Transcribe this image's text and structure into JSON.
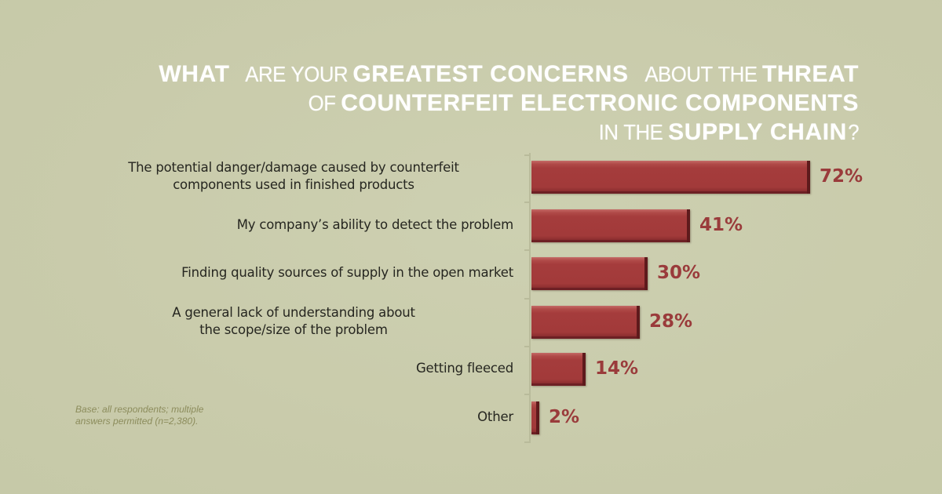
{
  "title": {
    "line1": [
      {
        "text": "WHAT",
        "bold": true
      },
      {
        "text": " ARE YOUR ",
        "bold": false
      },
      {
        "text": "GREATEST CONCERNS",
        "bold": true
      },
      {
        "text": " ABOUT THE ",
        "bold": false
      },
      {
        "text": "THREAT",
        "bold": true
      }
    ],
    "line2": [
      {
        "text": "OF ",
        "bold": false
      },
      {
        "text": "COUNTERFEIT ELECTRONIC COMPONENTS",
        "bold": true
      }
    ],
    "line3": [
      {
        "text": "IN THE ",
        "bold": false
      },
      {
        "text": "SUPPLY CHAIN",
        "bold": true
      },
      {
        "text": "?",
        "bold": false
      }
    ]
  },
  "note": {
    "line1": "Base:  all respondents; multiple",
    "line2": "answers permitted (n=2,380)."
  },
  "colors": {
    "background": "#c9ccac",
    "bar": "#a23a3a",
    "value_label": "#9a3b3b",
    "title": "#ffffff"
  },
  "chart_data": {
    "type": "bar",
    "orientation": "horizontal",
    "title": "What are your greatest concerns about the threat of counterfeit electronic components in the supply chain?",
    "categories": [
      "The potential danger/damage caused by counterfeit components used in finished products",
      "My company's ability to detect the problem",
      "Finding quality sources of supply in the open market",
      "A general lack of understanding about the scope/size of the problem",
      "Getting fleeced",
      "Other"
    ],
    "category_lines": [
      [
        "The potential danger/damage caused by counterfeit",
        "components used in finished products"
      ],
      [
        "My company’s ability to detect the problem"
      ],
      [
        "Finding quality sources of supply in the open market"
      ],
      [
        "A general lack of understanding about",
        "the scope/size of the problem"
      ],
      [
        "Getting fleeced"
      ],
      [
        "Other"
      ]
    ],
    "values": [
      72,
      41,
      30,
      28,
      14,
      2
    ],
    "value_labels": [
      "72%",
      "41%",
      "30%",
      "28%",
      "14%",
      "2%"
    ],
    "unit": "%",
    "xlabel": "",
    "ylabel": "",
    "xlim": [
      0,
      72
    ],
    "grid": false,
    "legend": null,
    "annotation": "Base: all respondents; multiple answers permitted (n=2,380)."
  }
}
